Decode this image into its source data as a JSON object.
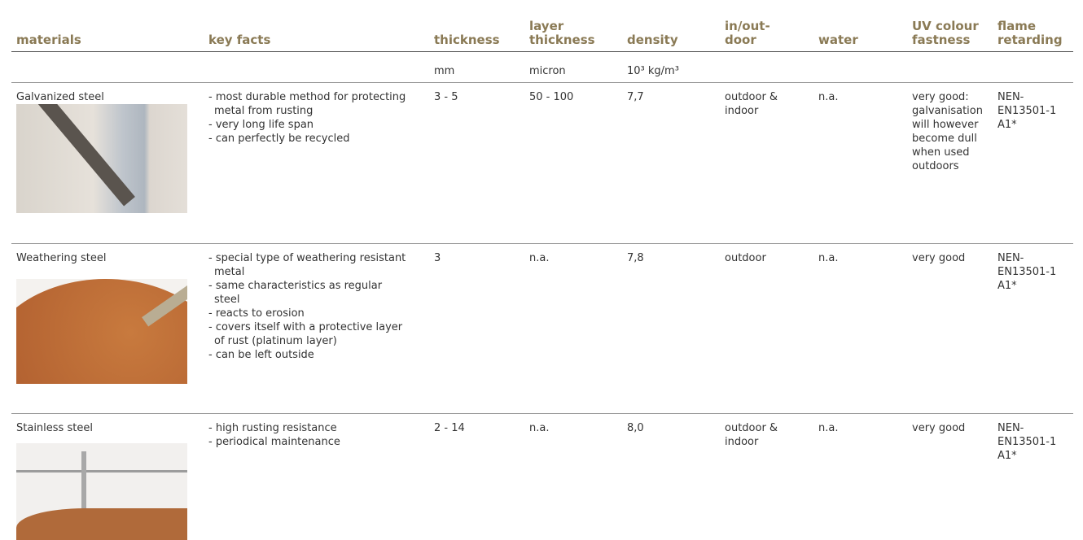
{
  "header": {
    "columns": [
      [
        "materials"
      ],
      [
        "key facts"
      ],
      [
        "thickness"
      ],
      [
        "layer",
        "thickness"
      ],
      [
        "density"
      ],
      [
        "in/out-",
        "door"
      ],
      [
        "water"
      ],
      [
        "UV colour",
        "fastness"
      ],
      [
        "flame",
        "retarding"
      ]
    ],
    "units": [
      "mm",
      "micron",
      "10³ kg/m³"
    ]
  },
  "rows": [
    {
      "material": "Galvanized steel",
      "key_facts": [
        "- most durable method for protecting metal from rusting",
        "- very long life span",
        "- can perfectly be recycled"
      ],
      "thickness": "3 - 5",
      "layer_thickness": "50 - 100",
      "density": "7,7",
      "in_out_door": "outdoor & indoor",
      "water": "n.a.",
      "uv_colour_fastness": "very good: galvanisa­tion will however become dull when used outdoors",
      "flame_retarding": "NEN-EN13501-1 A1*"
    },
    {
      "material": "Weathering steel",
      "key_facts": [
        "- special type of weathering resistant metal",
        "- same characteristics as regular steel",
        "- reacts to erosion",
        "- covers itself with a protective layer of rust (platinum layer)",
        "- can be left outside"
      ],
      "thickness": "3",
      "layer_thickness": "n.a.",
      "density": "7,8",
      "in_out_door": "outdoor",
      "water": "n.a.",
      "uv_colour_fastness": "very good",
      "flame_retarding": "NEN-EN13501-1 A1*"
    },
    {
      "material": "Stainless steel",
      "key_facts": [
        "- high rusting resistance",
        "- periodical maintenance"
      ],
      "thickness": "2 - 14",
      "layer_thickness": "n.a.",
      "density": "8,0",
      "in_out_door": "outdoor & indoor",
      "water": "n.a.",
      "uv_colour_fastness": "very good",
      "flame_retarding": "NEN-EN13501-1 A1*"
    }
  ]
}
